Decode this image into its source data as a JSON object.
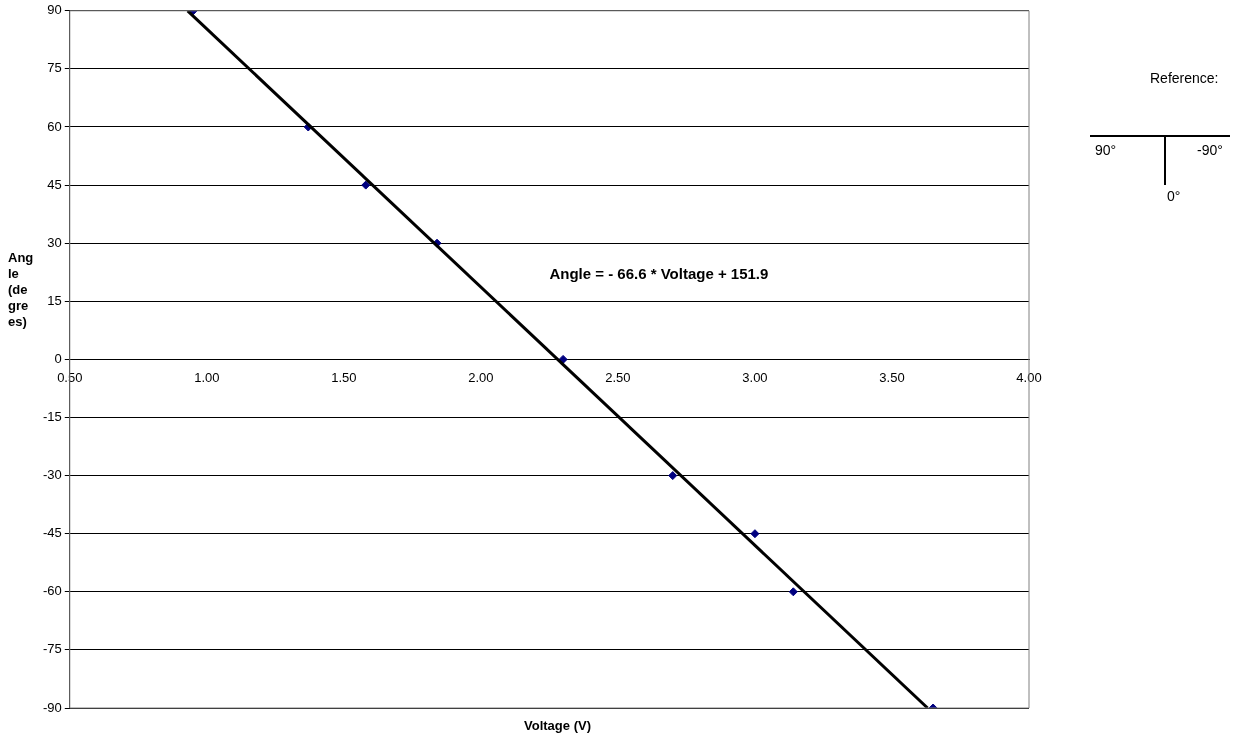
{
  "chart_data": {
    "type": "scatter",
    "xlabel": "Voltage (V)",
    "ylabel": "Angle (degrees)",
    "xlim": [
      0.5,
      4.0
    ],
    "xticks": [
      {
        "value": 0.5,
        "label": "0.50"
      },
      {
        "value": 1,
        "label": "1.00"
      },
      {
        "value": 1.5,
        "label": "1.50"
      },
      {
        "value": 2,
        "label": "2.00"
      },
      {
        "value": 2.5,
        "label": "2.50"
      },
      {
        "value": 3,
        "label": "3.00"
      },
      {
        "value": 3.5,
        "label": "3.50"
      },
      {
        "value": 4,
        "label": "4.00"
      }
    ],
    "ylim": [
      -90,
      90
    ],
    "yticks": [
      -90,
      -75,
      -60,
      -45,
      -30,
      -15,
      0,
      15,
      30,
      45,
      60,
      75,
      90
    ],
    "grid": "y",
    "legend": false,
    "marker": "diamond",
    "series": [
      {
        "type": "line",
        "color": "#000000",
        "marker": "none",
        "x": [
          0.93,
          3.63
        ],
        "values": [
          90,
          -90
        ]
      },
      {
        "type": "scatter",
        "color": "#000080",
        "x": [
          0.95,
          1.37,
          1.58,
          1.84,
          2.3,
          2.7,
          3.0,
          3.14,
          3.65
        ],
        "values": [
          90,
          60,
          45,
          30,
          0,
          -30,
          -45,
          -60,
          -90
        ]
      }
    ],
    "annotations": [
      "Angle = - 66.6 * Voltage + 151.9",
      "Reference:",
      "90°",
      "-90°",
      "0°"
    ]
  }
}
